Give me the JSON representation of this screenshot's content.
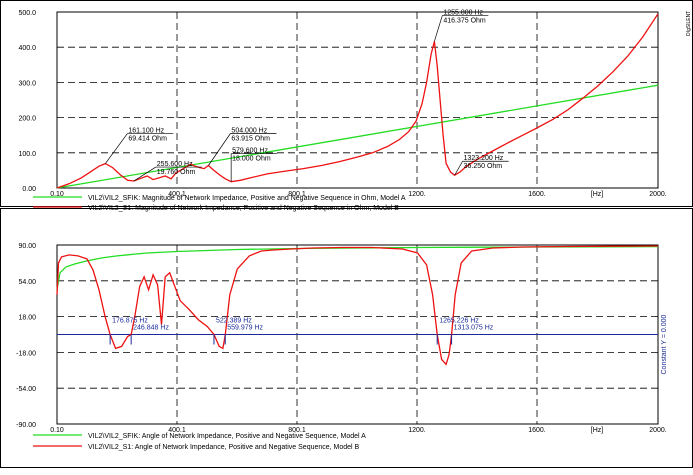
{
  "colors": {
    "series_a": "#22dd22",
    "series_b": "#ee1111",
    "constant_line": "#1a2a9a",
    "annotation_marker": "#1a2a9a",
    "grid": "#000000"
  },
  "watermark": "DIgSILENT",
  "chart_data": [
    {
      "type": "line",
      "x_unit": "[Hz]",
      "xlim": [
        0.1,
        2000.0
      ],
      "ylim": [
        0.0,
        500.0
      ],
      "x_ticks": [
        "0.10",
        "400.1",
        "800.1",
        "1200.",
        "1600.",
        "[Hz]",
        "2000."
      ],
      "y_ticks": [
        "500.0",
        "400.0",
        "300.0",
        "200.0",
        "100.0",
        "0.00"
      ],
      "grid": true,
      "legend_position": "bottom",
      "series": [
        {
          "name": "VIL2\\VIL2_SFIK: Magnitude of Network Impedance, Positive and Negative Sequence in Ohm, Model A",
          "color": "#22dd22",
          "x": [
            0.1,
            2000
          ],
          "y": [
            0.0,
            292.0
          ]
        },
        {
          "name": "VIL2\\VIL2_S1: Magnitude of Network Impedance, Positive and Negative Sequence in Ohm, Model B",
          "color": "#ee1111",
          "x": [
            0.1,
            40,
            80,
            110,
            140,
            161.1,
            185,
            210,
            235,
            255.6,
            275,
            300,
            320,
            345,
            360,
            380,
            395,
            410,
            430,
            445,
            460,
            475,
            490,
            504,
            520,
            540,
            560,
            579.6,
            610,
            650,
            700,
            760,
            820,
            880,
            940,
            1000,
            1050,
            1100,
            1140,
            1170,
            1195,
            1215,
            1230,
            1245,
            1255.8,
            1265,
            1275,
            1285,
            1295,
            1310,
            1323.2,
            1340,
            1360,
            1400,
            1450,
            1500,
            1550,
            1600,
            1650,
            1700,
            1750,
            1800,
            1850,
            1900,
            1950,
            2000
          ],
          "y": [
            0,
            12,
            28,
            45,
            62,
            69.414,
            58,
            38,
            22,
            19.76,
            26,
            34,
            24,
            30,
            34,
            26,
            42,
            50,
            60,
            68,
            62,
            58,
            55,
            63.915,
            52,
            38,
            26,
            18.0,
            22,
            30,
            40,
            48,
            55,
            64,
            75,
            88,
            100,
            118,
            138,
            160,
            190,
            240,
            300,
            380,
            416.375,
            350,
            250,
            150,
            70,
            45,
            36.25,
            45,
            60,
            82,
            105,
            128,
            150,
            172,
            195,
            222,
            255,
            290,
            330,
            375,
            430,
            495
          ]
        }
      ],
      "annotations": [
        {
          "x": 161.1,
          "y": 69.414,
          "freq": "161.100 Hz",
          "value": "69.414 Ohm"
        },
        {
          "x": 255.6,
          "y": 19.76,
          "freq": "255.600 Hz",
          "value": "19.760 Ohm"
        },
        {
          "x": 504.0,
          "y": 63.915,
          "freq": "504.000 Hz",
          "value": "63.915 Ohm"
        },
        {
          "x": 579.6,
          "y": 18.0,
          "freq": "579.600 Hz",
          "value": "18.000 Ohm"
        },
        {
          "x": 1255.8,
          "y": 416.375,
          "freq": "1255.800 Hz",
          "value": "416.375 Ohm"
        },
        {
          "x": 1323.2,
          "y": 36.25,
          "freq": "1323.200 Hz",
          "value": "36.250 Ohm"
        }
      ]
    },
    {
      "type": "line",
      "x_unit": "[Hz]",
      "xlim": [
        0.1,
        2000.0
      ],
      "ylim": [
        -90.0,
        90.0
      ],
      "x_ticks": [
        "0.10",
        "400.1",
        "800.1",
        "1200.",
        "1600.",
        "[Hz]",
        "2000."
      ],
      "y_ticks": [
        "90.00",
        "54.00",
        "18.00",
        "-18.00",
        "-54.00",
        "-90.00"
      ],
      "grid": true,
      "legend_position": "bottom",
      "constant_line": {
        "y": 0.0,
        "label": "Constant Y =  0.000"
      },
      "series": [
        {
          "name": "VIL2\\VIL2_SFIK: Angle of Network Impedance, Positive and Negative Sequence, Model A",
          "color": "#22dd22",
          "x": [
            0.1,
            10,
            30,
            60,
            100,
            150,
            200,
            250,
            300,
            400,
            500,
            600,
            800,
            1000,
            1200,
            1400,
            1600,
            1800,
            2000
          ],
          "y": [
            45,
            62,
            68,
            71,
            74,
            77,
            79,
            80.5,
            82,
            83.5,
            84.5,
            85.5,
            86.5,
            87,
            87.5,
            87.8,
            88,
            88.2,
            88.4
          ]
        },
        {
          "name": "VIL2\\VIL2_S1: Angle of Network Impedance, Positive and Negative Sequence, Model B",
          "color": "#ee1111",
          "x": [
            0.1,
            5,
            15,
            40,
            70,
            100,
            120,
            140,
            160,
            176.875,
            195,
            215,
            235,
            246.848,
            260,
            275,
            290,
            305,
            320,
            335,
            348,
            360,
            375,
            390,
            410,
            440,
            470,
            500,
            522.389,
            540,
            552,
            559.979,
            575,
            600,
            640,
            680,
            720,
            780,
            850,
            950,
            1050,
            1150,
            1200,
            1230,
            1250,
            1265.226,
            1280,
            1295,
            1305,
            1313.075,
            1325,
            1345,
            1380,
            1450,
            1550,
            1700,
            1850,
            2000
          ],
          "y": [
            40,
            72,
            78,
            80,
            79,
            76,
            65,
            45,
            18,
            0,
            -14,
            -12,
            -2,
            0,
            20,
            48,
            58,
            45,
            60,
            50,
            10,
            58,
            62,
            50,
            34,
            25,
            15,
            8,
            0,
            -12,
            -14,
            0,
            40,
            66,
            79,
            84,
            85,
            86,
            87,
            87.5,
            87.5,
            86,
            82,
            70,
            40,
            0,
            -25,
            -30,
            -20,
            0,
            40,
            72,
            84,
            87,
            88,
            88.5,
            88.8,
            89
          ]
        }
      ],
      "annotations": [
        {
          "x": 176.875,
          "y": 0.0,
          "label": "176.875 Hz"
        },
        {
          "x": 246.848,
          "y": 0.0,
          "label": "246.848 Hz"
        },
        {
          "x": 522.389,
          "y": 0.0,
          "label": "522.389 Hz"
        },
        {
          "x": 559.979,
          "y": 0.0,
          "label": "559.979 Hz"
        },
        {
          "x": 1265.226,
          "y": 0.0,
          "label": "1265.226 Hz"
        },
        {
          "x": 1313.075,
          "y": 0.0,
          "label": "1313.075 Hz"
        }
      ]
    }
  ]
}
